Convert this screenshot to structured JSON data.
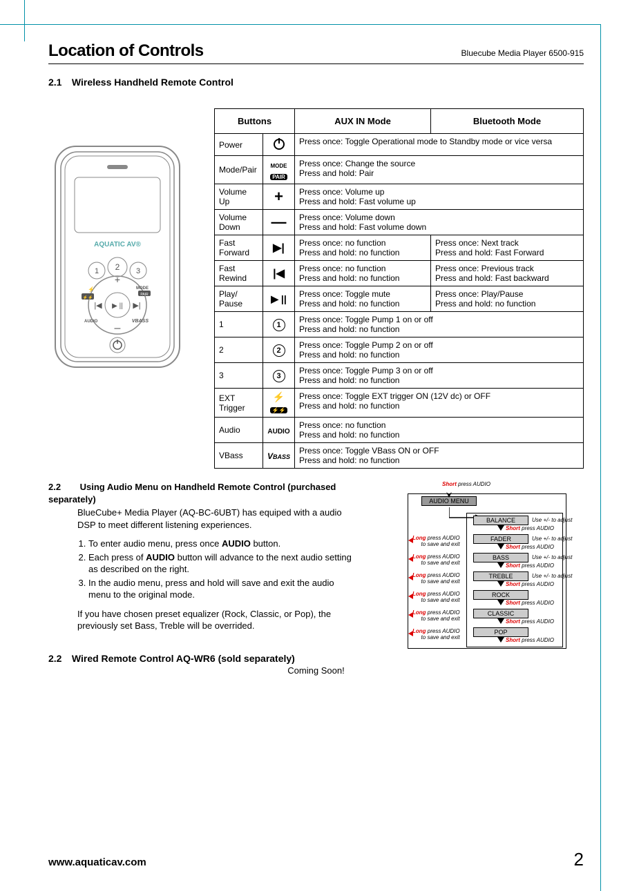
{
  "header": {
    "title": "Location of Controls",
    "product": "Bluecube Media Player 6500-915"
  },
  "section21": {
    "number": "2.1",
    "title": "Wireless Handheld Remote Control",
    "remote_brand": "AQUATIC AV",
    "remote_labels": {
      "one": "1",
      "two": "2",
      "three": "3",
      "mode": "MODE",
      "pair": "PAIR",
      "audio": "AUDIO",
      "vbass": "VBASS",
      "plus": "+",
      "minus": "–"
    }
  },
  "table": {
    "headers": {
      "buttons": "Buttons",
      "aux": "AUX IN Mode",
      "bt": "Bluetooth Mode"
    },
    "rows": [
      {
        "name": "Power",
        "icon_type": "power",
        "aux": "Press once: Toggle Operational mode to Standby mode or vice versa",
        "bt": "",
        "span": true
      },
      {
        "name": "Mode/Pair",
        "icon_type": "modepair",
        "aux": "Press once: Change the source\nPress and hold: Pair",
        "bt": "",
        "span": true
      },
      {
        "name": "Volume\nUp",
        "icon_type": "plus",
        "aux": "Press once: Volume up\nPress and hold: Fast volume up",
        "bt": "",
        "span": true
      },
      {
        "name": "Volume\nDown",
        "icon_type": "minus",
        "aux": "Press once: Volume down\nPress and hold: Fast volume down",
        "bt": "",
        "span": true
      },
      {
        "name": "Fast\nForward",
        "icon_type": "ff",
        "aux": "Press once: no function\nPress and hold: no function",
        "bt": "Press once: Next track\nPress and hold: Fast Forward",
        "span": false
      },
      {
        "name": "Fast\nRewind",
        "icon_type": "fr",
        "aux": "Press once: no function\nPress and hold: no function",
        "bt": "Press once: Previous track\nPress and hold: Fast backward",
        "span": false
      },
      {
        "name": "Play/\nPause",
        "icon_type": "pp",
        "aux": "Press once: Toggle mute\nPress and hold: no function",
        "bt": "Press once: Play/Pause\nPress and hold: no function",
        "span": false
      },
      {
        "name": "1",
        "icon_type": "c1",
        "aux": "Press once: Toggle Pump 1 on or off\nPress and hold: no function",
        "bt": "",
        "span": true
      },
      {
        "name": "2",
        "icon_type": "c2",
        "aux": "Press once: Toggle Pump 2 on or off\nPress and hold: no function",
        "bt": "",
        "span": true
      },
      {
        "name": "3",
        "icon_type": "c3",
        "aux": "Press once: Toggle Pump 3 on or off\nPress and hold: no function",
        "bt": "",
        "span": true
      },
      {
        "name": "EXT\nTrigger",
        "icon_type": "ext",
        "aux": "Press once: Toggle EXT trigger ON (12V dc) or OFF\nPress and hold: no function",
        "bt": "",
        "span": true
      },
      {
        "name": "Audio",
        "icon_type": "audio",
        "aux": "Press once: no function\nPress and hold: no function",
        "bt": "",
        "span": true
      },
      {
        "name": "VBass",
        "icon_type": "vbass",
        "aux": "Press once: Toggle VBass ON or OFF\nPress and hold: no function",
        "bt": "",
        "span": true
      }
    ]
  },
  "section22": {
    "number": "2.2",
    "title": "Using Audio Menu on Handheld Remote Control (purchased separately)",
    "para1": "BlueCube+ Media Player (AQ-BC-6UBT) has equiped with a audio DSP to meet different listening experiences.",
    "steps": [
      "To enter audio menu, press once AUDIO button.",
      "Each press of AUDIO button will advance to the next audio setting as described on the right.",
      "In the audio menu, press and hold will save and exit the audio menu to the original mode."
    ],
    "para2": "If you have chosen preset equalizer (Rock, Classic, or Pop), the previously set Bass, Treble will be overrided.",
    "bold_audio": "AUDIO"
  },
  "menu_diagram": {
    "top_label": "Short press AUDIO",
    "audio_menu": "AUDIO MENU",
    "items": [
      {
        "label": "BALANCE",
        "adj": "Use +/-  to adjust"
      },
      {
        "label": "FADER",
        "adj": "Use +/-  to adjust"
      },
      {
        "label": "BASS",
        "adj": "Use +/- to adjust"
      },
      {
        "label": "TREBLE",
        "adj": "Use +/- to adjust"
      },
      {
        "label": "ROCK",
        "adj": ""
      },
      {
        "label": "CLASSIC",
        "adj": ""
      },
      {
        "label": "POP",
        "adj": ""
      }
    ],
    "short_press": "Short press AUDIO",
    "long_press": "Long press AUDIO",
    "save_exit": "to save and exit",
    "colors": {
      "item_bg": "#cccccc",
      "header_bg": "#999999",
      "red": "#dd0000",
      "border": "#000000"
    }
  },
  "section23": {
    "number": "2.2",
    "title": "Wired Remote Control AQ-WR6 (sold separately)",
    "body": "Coming Soon!"
  },
  "footer": {
    "url": "www.aquaticav.com",
    "page": "2"
  },
  "colors": {
    "crop": "#0090a8",
    "text": "#000000"
  }
}
